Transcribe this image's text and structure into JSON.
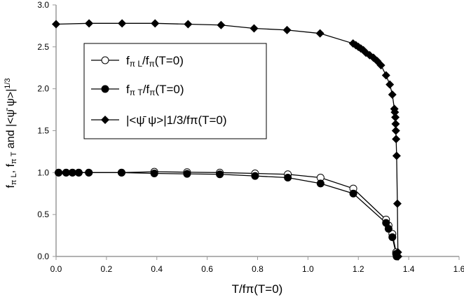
{
  "chart_data": {
    "type": "line",
    "title": "",
    "xlabel": "T/fπ(T=0)",
    "ylabel": "fπL, fπT and |<ψ̄ ψ>|^1/3",
    "xlim": [
      0,
      1.6
    ],
    "ylim": [
      0,
      3.0
    ],
    "xticks": [
      "0.0",
      "0.2",
      "0.4",
      "0.6",
      "0.8",
      "1.0",
      "1.2",
      "1.4",
      "1.6"
    ],
    "yticks": [
      "0.0",
      "0.5",
      "1.0",
      "1.5",
      "2.0",
      "2.5",
      "3.0"
    ],
    "grid": false,
    "legend_position": "upper-left inside",
    "series": [
      {
        "name": "fπL/fπ(T=0)",
        "marker": "open-circle",
        "x": [
          0.01,
          0.04,
          0.065,
          0.09,
          0.13,
          0.26,
          0.39,
          0.52,
          0.65,
          0.79,
          0.92,
          1.05,
          1.18,
          1.31,
          1.32,
          1.335,
          1.35,
          1.352
        ],
        "y": [
          1.0,
          1.0,
          1.0,
          1.0,
          1.0,
          1.0,
          1.01,
          1.005,
          1.0,
          0.99,
          0.98,
          0.94,
          0.81,
          0.44,
          0.37,
          0.27,
          0.05,
          0.02
        ]
      },
      {
        "name": "fπT/fπ(T=0)",
        "marker": "filled-circle",
        "x": [
          0.01,
          0.04,
          0.065,
          0.09,
          0.13,
          0.26,
          0.39,
          0.52,
          0.65,
          0.79,
          0.92,
          1.05,
          1.18,
          1.31,
          1.32,
          1.335,
          1.35,
          1.352
        ],
        "y": [
          1.0,
          1.0,
          1.0,
          1.0,
          1.0,
          1.0,
          0.99,
          0.985,
          0.98,
          0.96,
          0.94,
          0.87,
          0.75,
          0.4,
          0.33,
          0.23,
          0.03,
          0.0
        ]
      },
      {
        "name": "|<ψ̄ ψ>|^1/3/fπ(T=0)",
        "marker": "filled-diamond",
        "x": [
          0.0,
          0.131,
          0.262,
          0.393,
          0.524,
          0.655,
          0.786,
          0.917,
          1.048,
          1.179,
          1.19,
          1.2,
          1.21,
          1.22,
          1.23,
          1.245,
          1.26,
          1.275,
          1.29,
          1.31,
          1.325,
          1.335,
          1.343,
          1.345,
          1.347,
          1.348,
          1.349,
          1.35,
          1.352,
          1.355,
          1.357,
          1.358
        ],
        "y": [
          2.77,
          2.78,
          2.78,
          2.78,
          2.77,
          2.76,
          2.72,
          2.7,
          2.66,
          2.54,
          2.52,
          2.5,
          2.48,
          2.46,
          2.43,
          2.4,
          2.37,
          2.33,
          2.28,
          2.16,
          2.05,
          1.93,
          1.76,
          1.72,
          1.66,
          1.58,
          1.5,
          1.4,
          1.2,
          0.63,
          0.05,
          0.0
        ]
      }
    ]
  },
  "legend": {
    "entry0": "fπL/fπ(T=0)",
    "entry1": "fπT/fπ(T=0)",
    "entry2": "|<ψ̄ ψ>|1/3/fπ(T=0)"
  }
}
